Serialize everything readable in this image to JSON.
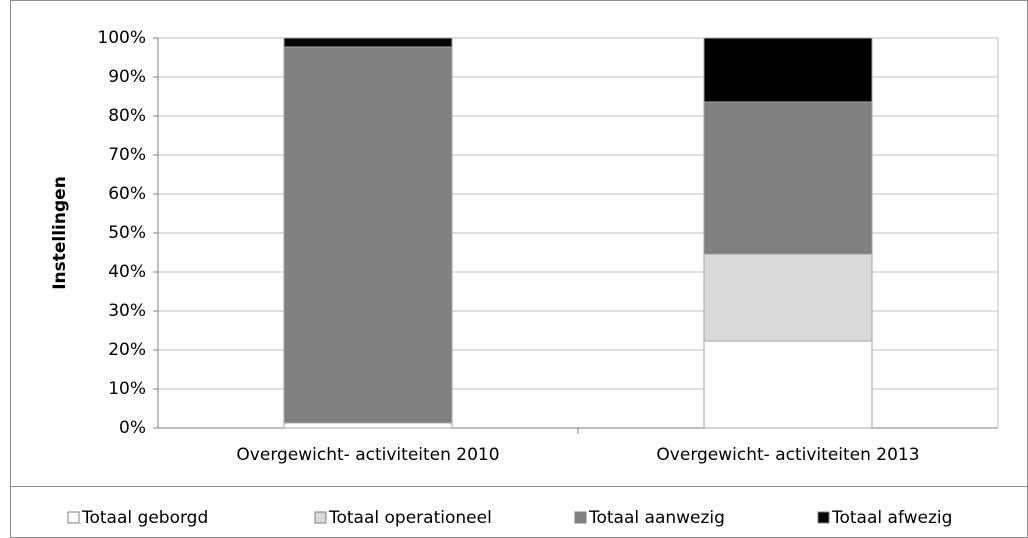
{
  "chart_data": {
    "type": "stacked_bar",
    "y_label": "Instellingen",
    "categories": [
      "Overgewicht- activiteiten 2010",
      "Overgewicht- activiteiten 2013"
    ],
    "series": [
      {
        "name": "Totaal geborgd",
        "color": "#ffffff",
        "values": [
          1.3,
          22.3
        ]
      },
      {
        "name": "Totaal operationeel",
        "color": "#d9d9d9",
        "values": [
          0,
          22.3
        ]
      },
      {
        "name": "Totaal aanwezig",
        "color": "#808080",
        "values": [
          96.4,
          39
        ]
      },
      {
        "name": "Totaal afwezig",
        "color": "#000000",
        "values": [
          2.3,
          16.4
        ]
      }
    ],
    "ylim": [
      0,
      100
    ],
    "yticks": [
      {
        "value": 0,
        "label": "0%"
      },
      {
        "value": 10,
        "label": "10%"
      },
      {
        "value": 20,
        "label": "20%"
      },
      {
        "value": 30,
        "label": "30%"
      },
      {
        "value": 40,
        "label": "40%"
      },
      {
        "value": 50,
        "label": "50%"
      },
      {
        "value": 60,
        "label": "60%"
      },
      {
        "value": 70,
        "label": "70%"
      },
      {
        "value": 80,
        "label": "80%"
      },
      {
        "value": 90,
        "label": "90%"
      },
      {
        "value": 100,
        "label": "100%"
      }
    ],
    "grid": true,
    "legend": "bottom"
  }
}
